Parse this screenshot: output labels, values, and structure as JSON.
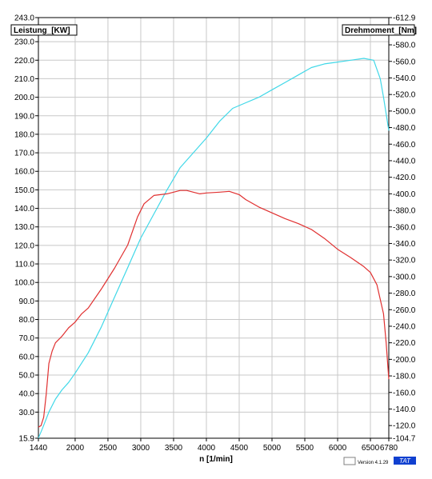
{
  "chart_data": {
    "type": "line",
    "xlabel": "n  [1/min]",
    "x_ticks": [
      1440,
      2000,
      2500,
      3000,
      3500,
      4000,
      4500,
      5000,
      5500,
      6000,
      6500,
      6780
    ],
    "xlim": [
      1440,
      6780
    ],
    "left_axis": {
      "label": "Leistung_[KW]",
      "ylim": [
        15.9,
        243.0
      ],
      "ticks": [
        15.9,
        30.0,
        40.0,
        50.0,
        60.0,
        70.0,
        80.0,
        90.0,
        100.0,
        110.0,
        120.0,
        130.0,
        140.0,
        150.0,
        160.0,
        170.0,
        180.0,
        190.0,
        200.0,
        210.0,
        220.0,
        230.0,
        243.0
      ]
    },
    "right_axis": {
      "label": "Drehmoment_[Nm]",
      "ylim": [
        104.7,
        612.9
      ],
      "ticks": [
        104.7,
        120.0,
        140.0,
        160.0,
        180.0,
        200.0,
        220.0,
        240.0,
        260.0,
        280.0,
        300.0,
        320.0,
        340.0,
        360.0,
        380.0,
        400.0,
        420.0,
        440.0,
        460.0,
        480.0,
        500.0,
        520.0,
        540.0,
        560.0,
        580.0,
        612.9
      ]
    },
    "grid": true,
    "series": [
      {
        "axis": "left",
        "color": "#40d8e8",
        "x": [
          1440,
          1500,
          1600,
          1700,
          1800,
          1900,
          2000,
          2200,
          2400,
          2600,
          2800,
          3000,
          3200,
          3400,
          3600,
          3800,
          4000,
          4200,
          4400,
          4600,
          4800,
          5000,
          5200,
          5400,
          5600,
          5800,
          6000,
          6200,
          6400,
          6550,
          6650,
          6700,
          6780
        ],
        "values": [
          16,
          21,
          30,
          37,
          42,
          46,
          51,
          62,
          76,
          92,
          108,
          124,
          137,
          150,
          162,
          170,
          178,
          187,
          194,
          197,
          200,
          204,
          208,
          212,
          216,
          218,
          219,
          220,
          221,
          220,
          210,
          200,
          182
        ]
      },
      {
        "axis": "right",
        "color": "#e03030",
        "x": [
          1440,
          1480,
          1520,
          1560,
          1600,
          1650,
          1700,
          1800,
          1900,
          2000,
          2100,
          2200,
          2400,
          2600,
          2800,
          2950,
          3050,
          3200,
          3400,
          3600,
          3700,
          3800,
          3900,
          4000,
          4200,
          4350,
          4500,
          4600,
          4800,
          5000,
          5200,
          5400,
          5600,
          5800,
          6000,
          6200,
          6400,
          6500,
          6600,
          6700,
          6740,
          6780
        ],
        "values": [
          118,
          120,
          130,
          158,
          195,
          210,
          220,
          228,
          238,
          245,
          255,
          262,
          285,
          310,
          338,
          372,
          388,
          398,
          400,
          404,
          404,
          402,
          400,
          401,
          402,
          403,
          399,
          393,
          384,
          377,
          370,
          364,
          357,
          346,
          333,
          323,
          312,
          305,
          290,
          255,
          220,
          176
        ]
      }
    ]
  },
  "footer": {
    "version_text": "Version 4.1.29",
    "badge": "TAT",
    "badge_color": "#1040d0"
  }
}
